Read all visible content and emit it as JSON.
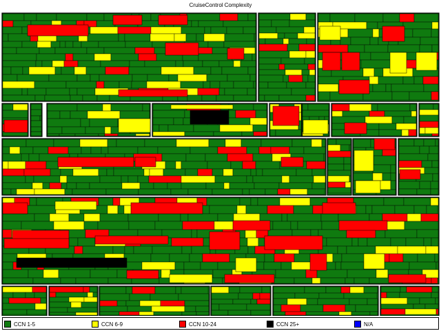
{
  "chart_data": {
    "type": "treemap",
    "title": "CruiseControl Complexity",
    "legend": [
      {
        "label": "CCN 1-5",
        "color": "#0f7a0f"
      },
      {
        "label": "CCN 6-9",
        "color": "#ffff00"
      },
      {
        "label": "CCN 10-24",
        "color": "#ff0000"
      },
      {
        "label": "CCN 25+",
        "color": "#000000"
      },
      {
        "label": "N/A",
        "color": "#0000ff"
      }
    ],
    "grid": false,
    "legend_position": "bottom"
  }
}
